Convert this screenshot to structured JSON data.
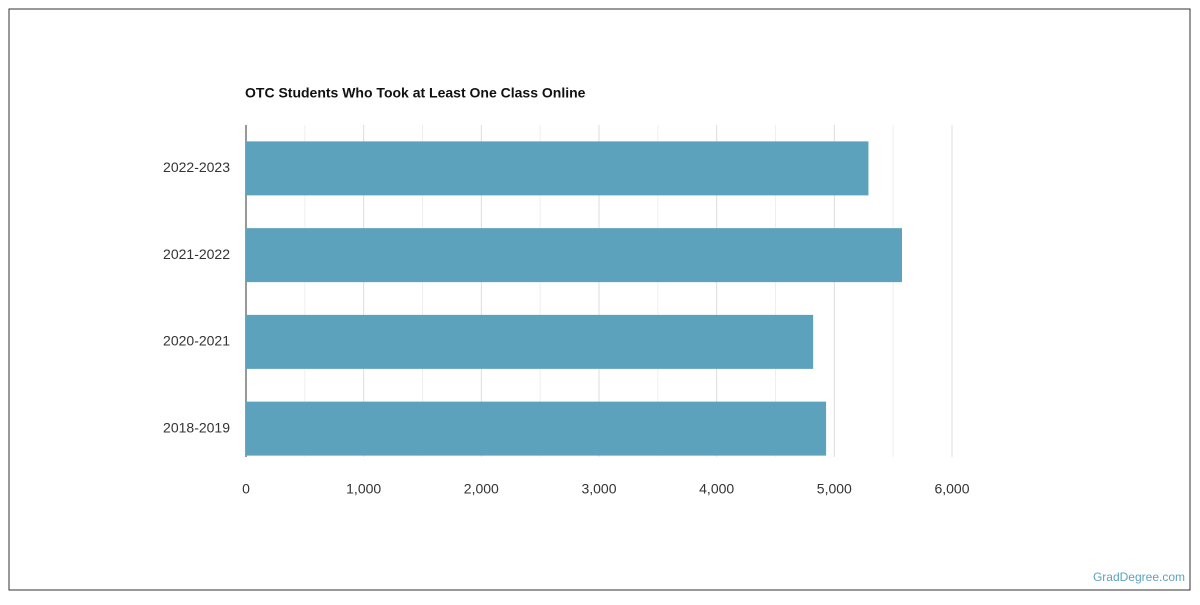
{
  "chart_data": {
    "type": "hbar",
    "title": "OTC Students Who Took at Least One Class Online",
    "categories": [
      "2022-2023",
      "2021-2022",
      "2020-2021",
      "2018-2019"
    ],
    "values": [
      5290,
      5575,
      4820,
      4930
    ],
    "color": "#5da2bd",
    "xlim": [
      0,
      6000
    ],
    "xticks": [
      0,
      {
        "value": 1000,
        "label": "1,000"
      },
      {
        "value": 2000,
        "label": "2,000"
      },
      {
        "value": 3000,
        "label": "3,000"
      },
      {
        "value": 4000,
        "label": "4,000"
      },
      {
        "value": 5000,
        "label": "5,000"
      },
      {
        "value": 6000,
        "label": "6,000"
      }
    ],
    "minor_xticks": [
      500,
      1500,
      2500,
      3500,
      4500,
      5500
    ],
    "grid": true,
    "source": "GradDegree.com"
  }
}
